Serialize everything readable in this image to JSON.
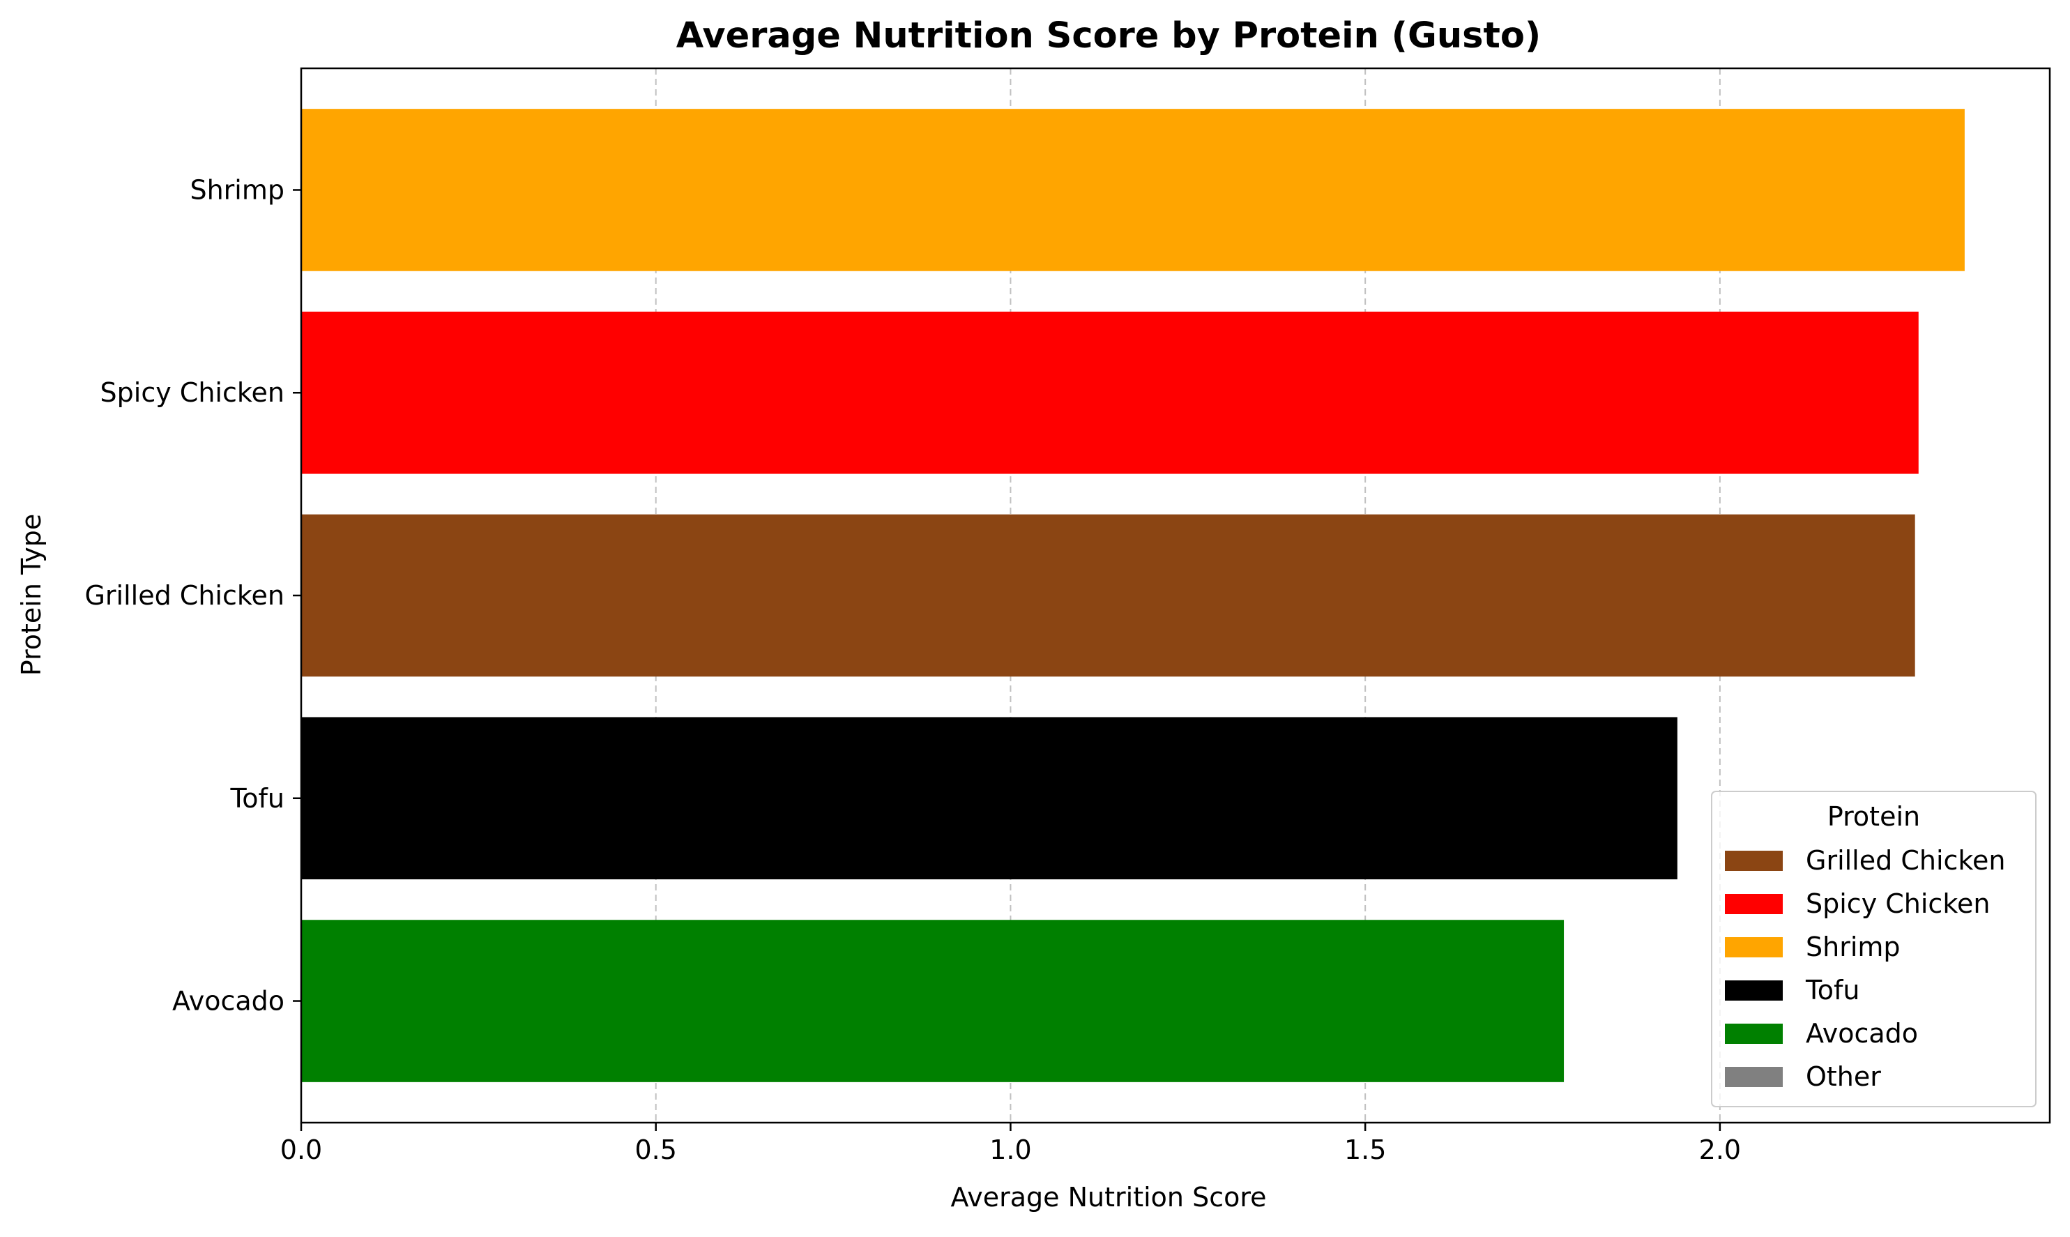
{
  "chart_data": {
    "type": "bar",
    "orientation": "horizontal",
    "title": "Average Nutrition Score by Protein (Gusto)",
    "xlabel": "Average Nutrition Score",
    "ylabel": "Protein Type",
    "xlim": [
      0,
      2.465
    ],
    "xticks": [
      0.0,
      0.5,
      1.0,
      1.5,
      2.0
    ],
    "xtick_labels": [
      "0.0",
      "0.5",
      "1.0",
      "1.5",
      "2.0"
    ],
    "grid": {
      "axis": "x",
      "style": "dashed"
    },
    "categories": [
      "Shrimp",
      "Spicy Chicken",
      "Grilled Chicken",
      "Tofu",
      "Avocado"
    ],
    "values": [
      2.345,
      2.28,
      2.275,
      1.94,
      1.78
    ],
    "bar_colors": [
      "#FFA500",
      "#FF0000",
      "#8B4513",
      "#000000",
      "#008000"
    ],
    "legend": {
      "title": "Protein",
      "position": "lower right",
      "entries": [
        {
          "label": "Grilled Chicken",
          "color": "#8B4513"
        },
        {
          "label": "Spicy Chicken",
          "color": "#FF0000"
        },
        {
          "label": "Shrimp",
          "color": "#FFA500"
        },
        {
          "label": "Tofu",
          "color": "#000000"
        },
        {
          "label": "Avocado",
          "color": "#008000"
        },
        {
          "label": "Other",
          "color": "#808080"
        }
      ]
    }
  }
}
